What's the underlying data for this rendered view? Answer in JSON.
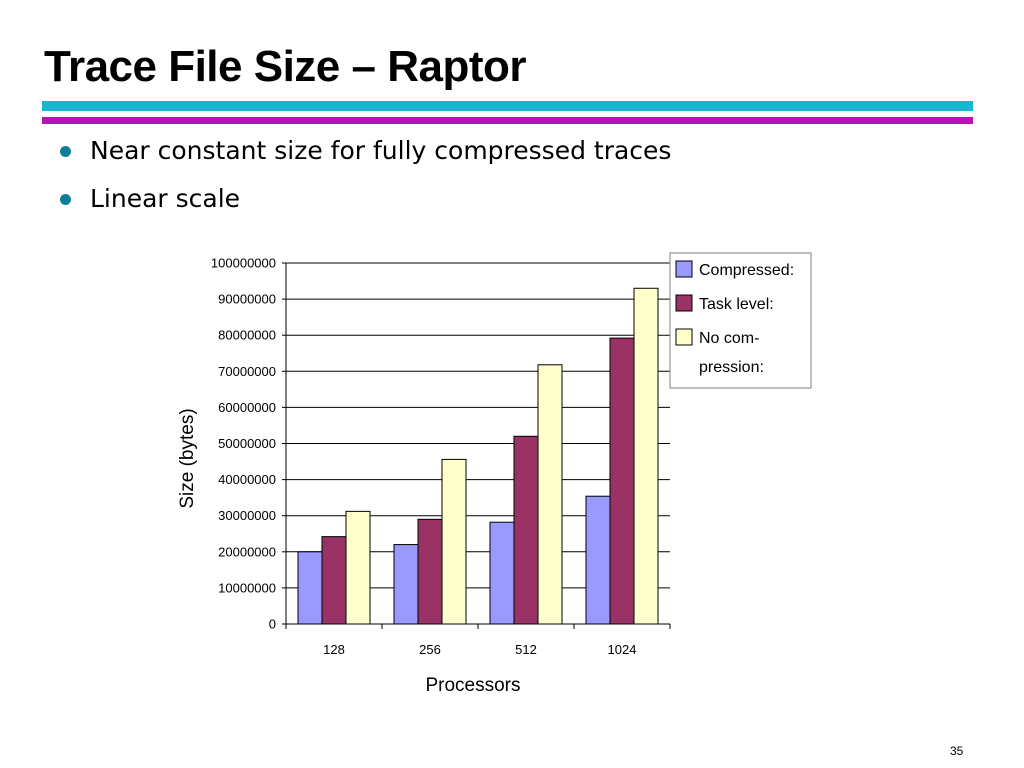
{
  "slide": {
    "title": "Trace File Size – Raptor",
    "bullets": [
      "Near constant size for fully compressed traces",
      "Linear scale"
    ],
    "page_number": "35"
  },
  "colors": {
    "accent_cyan": "#19b6cf",
    "accent_magenta": "#b612b6",
    "bullet": "#107d96"
  },
  "chart_data": {
    "type": "bar",
    "categories": [
      "128",
      "256",
      "512",
      "1024"
    ],
    "series": [
      {
        "name": "Compressed:",
        "color": "#9999ff",
        "values": [
          20000000,
          22000000,
          28200000,
          35400000
        ]
      },
      {
        "name": "Task level:",
        "color": "#993366",
        "values": [
          24200000,
          29000000,
          52000000,
          79200000
        ]
      },
      {
        "name": "No com-\npression:",
        "color": "#ffffcc",
        "values": [
          31200000,
          45600000,
          71800000,
          93000000
        ]
      }
    ],
    "xlabel": "Processors",
    "ylabel": "Size (bytes)",
    "ylim": [
      0,
      100000000
    ],
    "yticks": [
      "0",
      "10000000",
      "20000000",
      "30000000",
      "40000000",
      "50000000",
      "60000000",
      "70000000",
      "80000000",
      "90000000",
      "100000000"
    ],
    "grid": true,
    "legend": "top-right"
  }
}
